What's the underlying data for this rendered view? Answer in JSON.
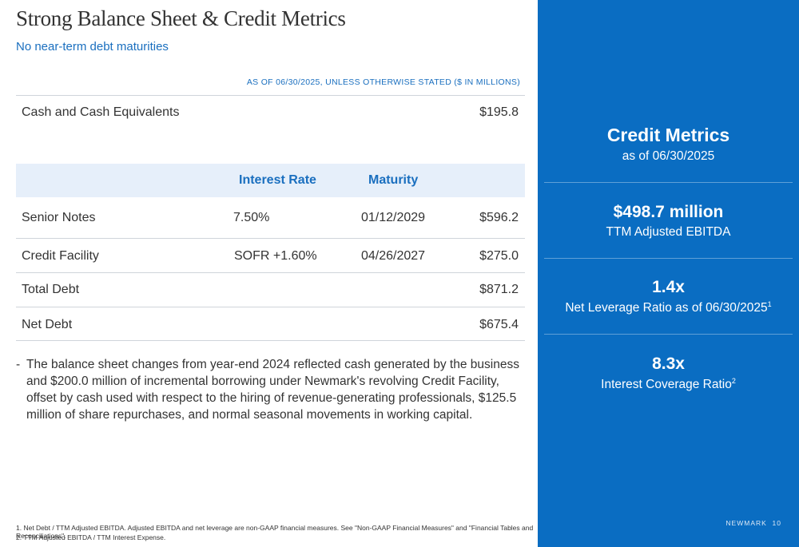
{
  "header": {
    "title": "Strong Balance Sheet & Credit Metrics",
    "subtitle": "No near-term debt maturities",
    "as_of_note": "AS OF 06/30/2025, UNLESS OTHERWISE STATED ($ IN MILLIONS)"
  },
  "cash": {
    "label": "Cash and Cash Equivalents",
    "value": "$195.8"
  },
  "table": {
    "columns": [
      "Interest Rate",
      "Maturity"
    ],
    "rows": [
      {
        "label": "Senior Notes",
        "rate": "7.50%",
        "maturity": "01/12/2029",
        "value": "$596.2"
      },
      {
        "label": "Credit Facility",
        "rate": "SOFR +1.60%",
        "maturity": "04/26/2027",
        "value": "$275.0"
      },
      {
        "label": "Total Debt",
        "rate": "",
        "maturity": "",
        "value": "$871.2"
      },
      {
        "label": "Net Debt",
        "rate": "",
        "maturity": "",
        "value": "$675.4"
      }
    ]
  },
  "note": {
    "dash": "-",
    "text": "The balance sheet changes from year-end 2024 reflected cash generated by the business and $200.0 million of incremental borrowing under Newmark's revolving Credit Facility, offset by cash used with respect to the hiring of revenue-generating professionals, $125.5 million of share repurchases, and normal seasonal movements in working capital."
  },
  "footnotes": [
    "1. Net Debt / TTM Adjusted EBITDA. Adjusted EBITDA and net leverage are non-GAAP financial measures. See \"Non-GAAP Financial Measures\" and \"Financial Tables and Reconciliations\".",
    "2. TTM Adjusted EBITDA / TTM Interest Expense."
  ],
  "sidebar": {
    "heading": "Credit Metrics",
    "heading_sub": "as of 06/30/2025",
    "metrics": [
      {
        "value": "$498.7 million",
        "label": "TTM Adjusted EBITDA",
        "sup": ""
      },
      {
        "value": "1.4x",
        "label": "Net Leverage Ratio as of 06/30/2025",
        "sup": "1"
      },
      {
        "value": "8.3x",
        "label": "Interest Coverage Ratio",
        "sup": "2"
      }
    ],
    "brand": "NEWMARK",
    "page_number": "10",
    "colors": {
      "panel": "#0a6dc2",
      "accent": "#1a6fbf",
      "header_fill": "#e6effa"
    }
  }
}
